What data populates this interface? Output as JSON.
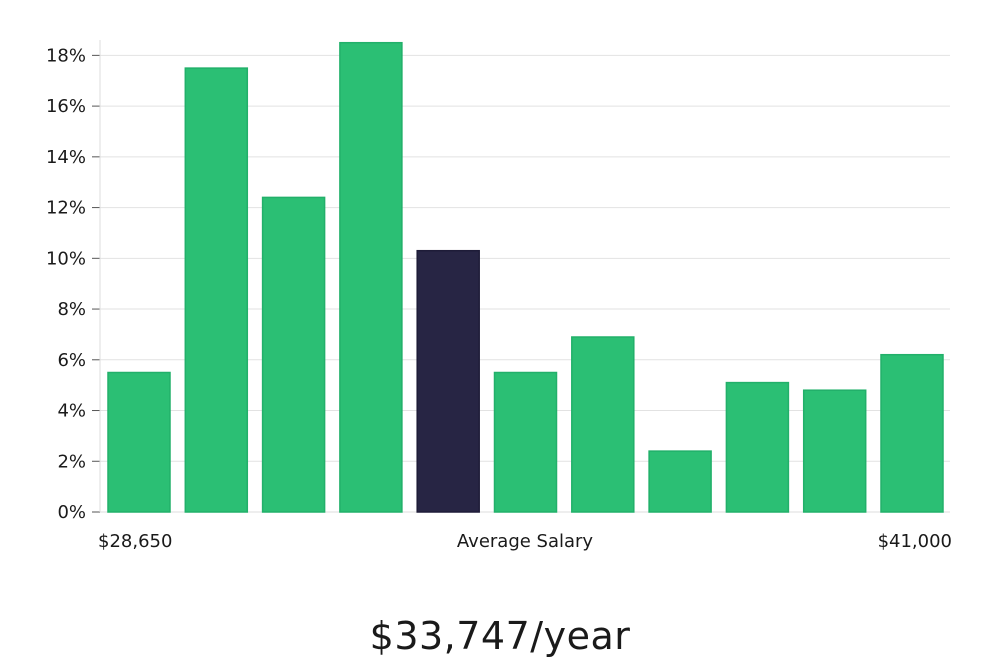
{
  "chart_data": {
    "type": "bar",
    "title": "",
    "xlabel": "Average Salary",
    "ylabel": "",
    "x_range_labels": {
      "min": "$28,650",
      "max": "$41,000"
    },
    "values": [
      5.5,
      17.5,
      12.4,
      18.5,
      10.3,
      5.5,
      6.9,
      2.4,
      5.1,
      4.8,
      6.2
    ],
    "highlight_index": 4,
    "ylim": [
      0,
      19
    ],
    "yticks": [
      0,
      2,
      4,
      6,
      8,
      10,
      12,
      14,
      16,
      18
    ],
    "ytick_suffix": "%",
    "grid": true,
    "colors": {
      "bar": "#2bbf74",
      "bar_edge": "#22b06a",
      "highlight": "#272544",
      "grid": "#e2e2e2"
    }
  },
  "summary": {
    "salary_text": "$33,747/year"
  }
}
